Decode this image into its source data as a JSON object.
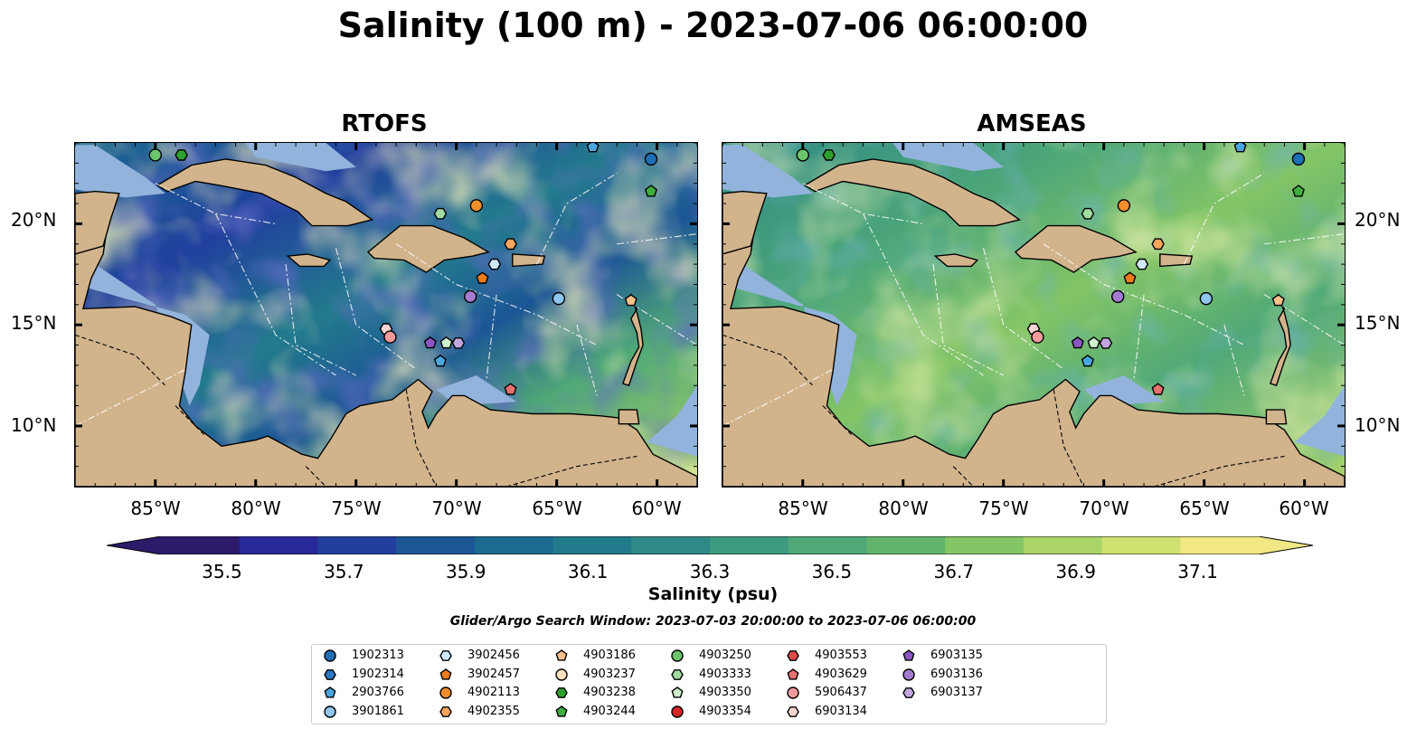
{
  "title": "Salinity (100 m) - 2023-07-06 06:00:00",
  "panels": [
    {
      "title": "RTOFS",
      "style": "salty-dark"
    },
    {
      "title": "AMSEAS",
      "style": "mid"
    }
  ],
  "lat_labels": [
    "20°N",
    "15°N",
    "10°N"
  ],
  "lon_labels": [
    "85°W",
    "80°W",
    "75°W",
    "70°W",
    "65°W",
    "60°W"
  ],
  "map_extent": {
    "lon": [
      -89,
      -58
    ],
    "lat": [
      7,
      24
    ]
  },
  "colorbar": {
    "label": "Salinity (psu)",
    "ticks": [
      "35.5",
      "35.7",
      "35.9",
      "36.1",
      "36.3",
      "36.5",
      "36.7",
      "36.9",
      "37.1"
    ],
    "range": [
      35.4,
      37.2
    ],
    "extend": "both",
    "colors": [
      "#2c1a6a",
      "#28289a",
      "#21409e",
      "#1c5695",
      "#1c6a8f",
      "#227b8c",
      "#2e8a86",
      "#3d9980",
      "#4fa877",
      "#62b46d",
      "#84c566",
      "#aad468",
      "#cfe170",
      "#f1e784"
    ]
  },
  "search_window": "Glider/Argo Search Window: 2023-07-03 20:00:00 to 2023-07-06 06:00:00",
  "colors": {
    "land": "#d2b48c",
    "shallow": "#92b3dc"
  },
  "legend": [
    {
      "id": "1902313",
      "shape": "circle",
      "color": "#1f6fb8"
    },
    {
      "id": "1902314",
      "shape": "hexagon",
      "color": "#2a78c5"
    },
    {
      "id": "2903766",
      "shape": "pentagon",
      "color": "#4aa6e0"
    },
    {
      "id": "3901861",
      "shape": "circle",
      "color": "#8fc5ee"
    },
    {
      "id": "3902456",
      "shape": "hexagon",
      "color": "#cfe8fb"
    },
    {
      "id": "3902457",
      "shape": "pentagon",
      "color": "#f07b1c"
    },
    {
      "id": "4902113",
      "shape": "circle",
      "color": "#f28e2b"
    },
    {
      "id": "4902355",
      "shape": "hexagon",
      "color": "#f6a65c"
    },
    {
      "id": "4903186",
      "shape": "pentagon",
      "color": "#f9c08a"
    },
    {
      "id": "4903237",
      "shape": "circle",
      "color": "#fde0c0"
    },
    {
      "id": "4903238",
      "shape": "hexagon",
      "color": "#2ca02c"
    },
    {
      "id": "4903244",
      "shape": "pentagon",
      "color": "#3fae3f"
    },
    {
      "id": "4903250",
      "shape": "circle",
      "color": "#6cc46c"
    },
    {
      "id": "4903333",
      "shape": "hexagon",
      "color": "#a1dca1"
    },
    {
      "id": "4903350",
      "shape": "pentagon",
      "color": "#cdf2cd"
    },
    {
      "id": "4903354",
      "shape": "circle",
      "color": "#d62728"
    },
    {
      "id": "4903553",
      "shape": "hexagon",
      "color": "#e04a4a"
    },
    {
      "id": "4903629",
      "shape": "pentagon",
      "color": "#e8716f"
    },
    {
      "id": "5906437",
      "shape": "circle",
      "color": "#f29b9a"
    },
    {
      "id": "6903134",
      "shape": "hexagon",
      "color": "#fbd3d2"
    },
    {
      "id": "6903135",
      "shape": "pentagon",
      "color": "#8c56c2"
    },
    {
      "id": "6903136",
      "shape": "circle",
      "color": "#a57bd0"
    },
    {
      "id": "6903137",
      "shape": "hexagon",
      "color": "#c3a6e0"
    }
  ],
  "stations": [
    {
      "lon": -85.0,
      "lat": 23.4,
      "shape": "circle",
      "color": "#6cc46c"
    },
    {
      "lon": -83.7,
      "lat": 23.4,
      "shape": "hexagon",
      "color": "#2ca02c"
    },
    {
      "lon": -63.2,
      "lat": 23.8,
      "shape": "pentagon",
      "color": "#4aa6e0"
    },
    {
      "lon": -60.3,
      "lat": 23.2,
      "shape": "circle",
      "color": "#1f6fb8"
    },
    {
      "lon": -60.3,
      "lat": 21.6,
      "shape": "pentagon",
      "color": "#3fae3f"
    },
    {
      "lon": -69.0,
      "lat": 20.9,
      "shape": "circle",
      "color": "#f28e2b"
    },
    {
      "lon": -70.8,
      "lat": 20.5,
      "shape": "hexagon",
      "color": "#a1dca1"
    },
    {
      "lon": -67.3,
      "lat": 19.0,
      "shape": "hexagon",
      "color": "#f6a65c"
    },
    {
      "lon": -68.1,
      "lat": 18.0,
      "shape": "hexagon",
      "color": "#cfe8fb"
    },
    {
      "lon": -68.7,
      "lat": 17.3,
      "shape": "pentagon",
      "color": "#f07b1c"
    },
    {
      "lon": -69.3,
      "lat": 16.4,
      "shape": "circle",
      "color": "#a57bd0"
    },
    {
      "lon": -64.9,
      "lat": 16.3,
      "shape": "circle",
      "color": "#8fc5ee"
    },
    {
      "lon": -61.3,
      "lat": 16.2,
      "shape": "pentagon",
      "color": "#f9c08a"
    },
    {
      "lon": -73.5,
      "lat": 14.8,
      "shape": "hexagon",
      "color": "#fbd3d2"
    },
    {
      "lon": -73.3,
      "lat": 14.4,
      "shape": "circle",
      "color": "#f29b9a"
    },
    {
      "lon": -71.3,
      "lat": 14.1,
      "shape": "pentagon",
      "color": "#8c56c2"
    },
    {
      "lon": -70.5,
      "lat": 14.1,
      "shape": "pentagon",
      "color": "#cdf2cd"
    },
    {
      "lon": -69.9,
      "lat": 14.1,
      "shape": "hexagon",
      "color": "#c3a6e0"
    },
    {
      "lon": -70.8,
      "lat": 13.2,
      "shape": "pentagon",
      "color": "#4aa6e0"
    },
    {
      "lon": -67.3,
      "lat": 11.8,
      "shape": "pentagon",
      "color": "#e8716f"
    }
  ]
}
